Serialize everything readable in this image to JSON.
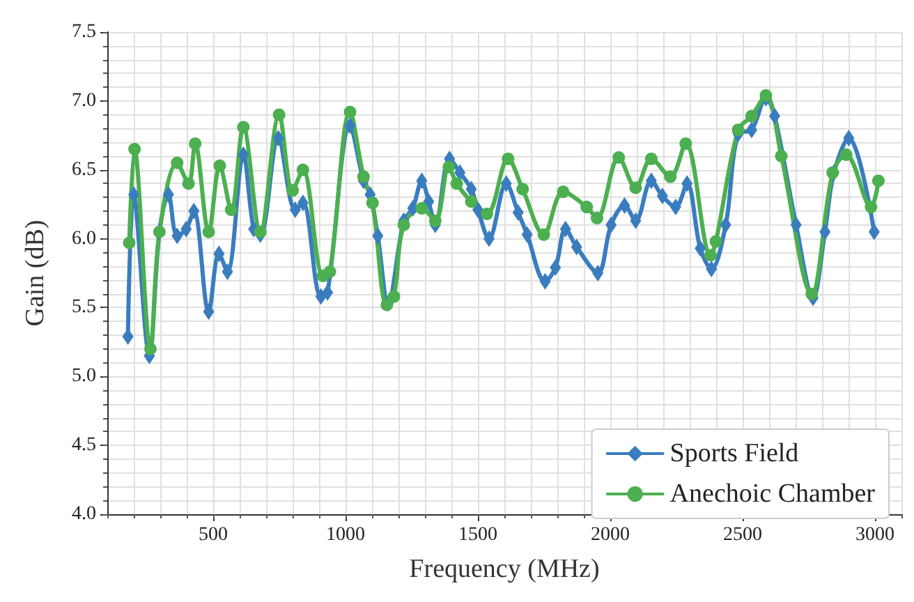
{
  "chart_data": {
    "type": "line",
    "xlabel": "Frequency (MHz)",
    "ylabel": "Gain (dB)",
    "xlim": [
      100,
      3100
    ],
    "xticks": [
      500,
      1000,
      1500,
      2000,
      2500,
      3000
    ],
    "ylim": [
      4.0,
      7.5
    ],
    "yticks": [
      {
        "value": 4.0,
        "label": "4.0"
      },
      {
        "value": 4.5,
        "label": "4.5"
      },
      {
        "value": 5.0,
        "label": "5.0"
      },
      {
        "value": 5.5,
        "label": "5.5"
      },
      {
        "value": 6.0,
        "label": "6.0"
      },
      {
        "value": 6.5,
        "label": "6.5"
      },
      {
        "value": 7.0,
        "label": "7.0"
      },
      {
        "value": 7.5,
        "label": "7.5"
      }
    ],
    "grid": true,
    "legend": "bottom right",
    "line_style": "solid",
    "series": [
      {
        "name": "Sports Field",
        "color": "#3a7dbf",
        "marker": "diamond",
        "x": [
          178,
          200,
          259,
          297,
          331,
          364,
          398,
          427,
          483,
          522,
          554,
          614,
          653,
          678,
          746,
          810,
          839,
          907,
          932,
          1017,
          1068,
          1093,
          1122,
          1161,
          1220,
          1254,
          1288,
          1314,
          1339,
          1393,
          1432,
          1475,
          1500,
          1542,
          1607,
          1652,
          1686,
          1754,
          1793,
          1831,
          1873,
          1953,
          2003,
          2054,
          2096,
          2155,
          2197,
          2247,
          2290,
          2340,
          2382,
          2436,
          2483,
          2534,
          2588,
          2621,
          2702,
          2766,
          2811,
          2845,
          2901,
          2997
        ],
        "values": [
          5.29,
          6.32,
          5.15,
          6.05,
          6.32,
          6.02,
          6.07,
          6.2,
          5.47,
          5.89,
          5.76,
          6.61,
          6.07,
          6.03,
          6.73,
          6.21,
          6.26,
          5.58,
          5.61,
          6.82,
          6.42,
          6.32,
          6.02,
          5.53,
          6.13,
          6.22,
          6.42,
          6.27,
          6.1,
          6.58,
          6.48,
          6.36,
          6.21,
          6.0,
          6.4,
          6.19,
          6.03,
          5.69,
          5.79,
          6.07,
          5.94,
          5.75,
          6.1,
          6.24,
          6.13,
          6.42,
          6.31,
          6.23,
          6.4,
          5.93,
          5.78,
          6.1,
          6.76,
          6.79,
          7.02,
          6.89,
          6.1,
          5.57,
          6.05,
          6.48,
          6.73,
          6.05
        ]
      },
      {
        "name": "Anechoic Chamber",
        "color": "#4caf50",
        "marker": "circle",
        "x": [
          183,
          203,
          263,
          297,
          364,
          407,
          432,
          483,
          525,
          568,
          614,
          678,
          749,
          800,
          839,
          915,
          941,
          1017,
          1068,
          1102,
          1156,
          1183,
          1220,
          1288,
          1339,
          1390,
          1420,
          1475,
          1534,
          1614,
          1669,
          1749,
          1822,
          1911,
          1950,
          2032,
          2096,
          2155,
          2227,
          2285,
          2379,
          2399,
          2483,
          2534,
          2588,
          2646,
          2761,
          2840,
          2891,
          2985,
          3013
        ],
        "values": [
          5.97,
          6.65,
          5.2,
          6.05,
          6.55,
          6.4,
          6.69,
          6.05,
          6.53,
          6.21,
          6.81,
          6.05,
          6.9,
          6.35,
          6.5,
          5.73,
          5.76,
          6.92,
          6.45,
          6.26,
          5.52,
          5.58,
          6.1,
          6.22,
          6.13,
          6.52,
          6.4,
          6.27,
          6.18,
          6.58,
          6.36,
          6.03,
          6.34,
          6.23,
          6.15,
          6.59,
          6.37,
          6.58,
          6.45,
          6.69,
          5.88,
          5.98,
          6.79,
          6.89,
          7.04,
          6.6,
          5.6,
          6.48,
          6.61,
          6.23,
          6.42
        ]
      }
    ]
  }
}
